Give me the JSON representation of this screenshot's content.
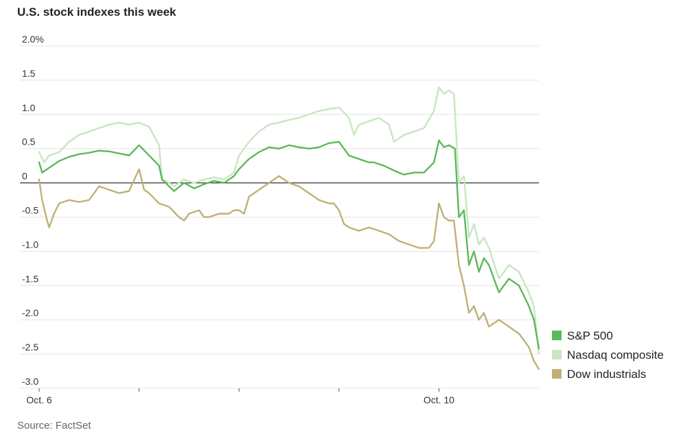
{
  "title": "U.S. stock indexes this week",
  "source": "Source: FactSet",
  "chart_data": {
    "type": "line",
    "title": "U.S. stock indexes this week",
    "ylim": [
      -3.0,
      2.0
    ],
    "y_ticks": [
      {
        "value": 2.0,
        "label": "2.0%"
      },
      {
        "value": 1.5,
        "label": "1.5"
      },
      {
        "value": 1.0,
        "label": "1.0"
      },
      {
        "value": 0.5,
        "label": "0.5"
      },
      {
        "value": 0,
        "label": "0"
      },
      {
        "value": -0.5,
        "label": "-0.5"
      },
      {
        "value": -1.0,
        "label": "-1.0"
      },
      {
        "value": -1.5,
        "label": "-1.5"
      },
      {
        "value": -2.0,
        "label": "-2.0"
      },
      {
        "value": -2.5,
        "label": "-2.5"
      },
      {
        "value": -3.0,
        "label": "-3.0"
      }
    ],
    "x_ticks": [
      {
        "day": 0,
        "label": "Oct. 6"
      },
      {
        "day": 1,
        "label": ""
      },
      {
        "day": 2,
        "label": ""
      },
      {
        "day": 3,
        "label": ""
      },
      {
        "day": 4,
        "label": "Oct. 10"
      }
    ],
    "xlim": [
      0,
      5
    ],
    "grid": true,
    "legend": "bottom-right",
    "series": [
      {
        "name": "S&P 500",
        "color": "#5cb85c",
        "points": [
          [
            0,
            0.3
          ],
          [
            0.03,
            0.15
          ],
          [
            0.1,
            0.22
          ],
          [
            0.2,
            0.32
          ],
          [
            0.3,
            0.38
          ],
          [
            0.4,
            0.42
          ],
          [
            0.5,
            0.44
          ],
          [
            0.6,
            0.47
          ],
          [
            0.7,
            0.46
          ],
          [
            0.8,
            0.43
          ],
          [
            0.9,
            0.4
          ],
          [
            1.0,
            0.55
          ],
          [
            1.1,
            0.4
          ],
          [
            1.2,
            0.25
          ],
          [
            1.23,
            0.05
          ],
          [
            1.3,
            -0.05
          ],
          [
            1.35,
            -0.12
          ],
          [
            1.45,
            0.0
          ],
          [
            1.55,
            -0.08
          ],
          [
            1.65,
            -0.02
          ],
          [
            1.75,
            0.03
          ],
          [
            1.85,
            0.0
          ],
          [
            1.95,
            0.1
          ],
          [
            2.0,
            0.2
          ],
          [
            2.1,
            0.35
          ],
          [
            2.2,
            0.45
          ],
          [
            2.3,
            0.52
          ],
          [
            2.4,
            0.5
          ],
          [
            2.5,
            0.55
          ],
          [
            2.6,
            0.52
          ],
          [
            2.7,
            0.5
          ],
          [
            2.8,
            0.52
          ],
          [
            2.9,
            0.58
          ],
          [
            3.0,
            0.6
          ],
          [
            3.1,
            0.4
          ],
          [
            3.2,
            0.35
          ],
          [
            3.3,
            0.3
          ],
          [
            3.35,
            0.3
          ],
          [
            3.45,
            0.25
          ],
          [
            3.55,
            0.18
          ],
          [
            3.65,
            0.12
          ],
          [
            3.75,
            0.15
          ],
          [
            3.85,
            0.15
          ],
          [
            3.95,
            0.3
          ],
          [
            4.0,
            0.62
          ],
          [
            4.05,
            0.52
          ],
          [
            4.1,
            0.55
          ],
          [
            4.16,
            0.5
          ],
          [
            4.2,
            -0.5
          ],
          [
            4.25,
            -0.4
          ],
          [
            4.3,
            -1.2
          ],
          [
            4.35,
            -1.0
          ],
          [
            4.4,
            -1.3
          ],
          [
            4.45,
            -1.1
          ],
          [
            4.5,
            -1.2
          ],
          [
            4.6,
            -1.6
          ],
          [
            4.7,
            -1.4
          ],
          [
            4.8,
            -1.5
          ],
          [
            4.9,
            -1.8
          ],
          [
            4.95,
            -2.0
          ],
          [
            5.0,
            -2.42
          ]
        ]
      },
      {
        "name": "Nasdaq composite",
        "color": "#c8e6c0",
        "points": [
          [
            0,
            0.45
          ],
          [
            0.05,
            0.3
          ],
          [
            0.1,
            0.4
          ],
          [
            0.2,
            0.45
          ],
          [
            0.3,
            0.6
          ],
          [
            0.4,
            0.7
          ],
          [
            0.5,
            0.75
          ],
          [
            0.6,
            0.8
          ],
          [
            0.7,
            0.85
          ],
          [
            0.8,
            0.88
          ],
          [
            0.9,
            0.85
          ],
          [
            1.0,
            0.88
          ],
          [
            1.1,
            0.82
          ],
          [
            1.2,
            0.55
          ],
          [
            1.23,
            0.05
          ],
          [
            1.3,
            0.0
          ],
          [
            1.35,
            -0.05
          ],
          [
            1.45,
            0.05
          ],
          [
            1.55,
            0.0
          ],
          [
            1.65,
            0.05
          ],
          [
            1.75,
            0.08
          ],
          [
            1.85,
            0.05
          ],
          [
            1.95,
            0.15
          ],
          [
            2.0,
            0.4
          ],
          [
            2.1,
            0.6
          ],
          [
            2.2,
            0.75
          ],
          [
            2.3,
            0.85
          ],
          [
            2.4,
            0.88
          ],
          [
            2.5,
            0.92
          ],
          [
            2.6,
            0.95
          ],
          [
            2.7,
            1.0
          ],
          [
            2.8,
            1.05
          ],
          [
            2.9,
            1.08
          ],
          [
            3.0,
            1.1
          ],
          [
            3.1,
            0.95
          ],
          [
            3.15,
            0.7
          ],
          [
            3.2,
            0.85
          ],
          [
            3.3,
            0.9
          ],
          [
            3.4,
            0.95
          ],
          [
            3.5,
            0.85
          ],
          [
            3.55,
            0.6
          ],
          [
            3.65,
            0.7
          ],
          [
            3.75,
            0.75
          ],
          [
            3.85,
            0.8
          ],
          [
            3.95,
            1.05
          ],
          [
            4.0,
            1.4
          ],
          [
            4.05,
            1.3
          ],
          [
            4.1,
            1.35
          ],
          [
            4.15,
            1.3
          ],
          [
            4.2,
            0.0
          ],
          [
            4.25,
            0.1
          ],
          [
            4.3,
            -0.8
          ],
          [
            4.35,
            -0.6
          ],
          [
            4.4,
            -0.9
          ],
          [
            4.45,
            -0.8
          ],
          [
            4.5,
            -0.95
          ],
          [
            4.6,
            -1.4
          ],
          [
            4.7,
            -1.2
          ],
          [
            4.8,
            -1.3
          ],
          [
            4.9,
            -1.6
          ],
          [
            4.95,
            -1.8
          ],
          [
            5.0,
            -2.5
          ]
        ]
      },
      {
        "name": "Dow industrials",
        "color": "#bfb176",
        "points": [
          [
            0,
            0.05
          ],
          [
            0.03,
            -0.25
          ],
          [
            0.08,
            -0.55
          ],
          [
            0.1,
            -0.65
          ],
          [
            0.15,
            -0.45
          ],
          [
            0.2,
            -0.3
          ],
          [
            0.3,
            -0.25
          ],
          [
            0.4,
            -0.28
          ],
          [
            0.5,
            -0.25
          ],
          [
            0.6,
            -0.05
          ],
          [
            0.7,
            -0.1
          ],
          [
            0.8,
            -0.15
          ],
          [
            0.9,
            -0.12
          ],
          [
            1.0,
            0.2
          ],
          [
            1.05,
            -0.1
          ],
          [
            1.1,
            -0.15
          ],
          [
            1.2,
            -0.3
          ],
          [
            1.3,
            -0.35
          ],
          [
            1.4,
            -0.5
          ],
          [
            1.45,
            -0.55
          ],
          [
            1.5,
            -0.45
          ],
          [
            1.6,
            -0.4
          ],
          [
            1.65,
            -0.5
          ],
          [
            1.7,
            -0.5
          ],
          [
            1.8,
            -0.45
          ],
          [
            1.9,
            -0.45
          ],
          [
            1.95,
            -0.4
          ],
          [
            2.0,
            -0.4
          ],
          [
            2.05,
            -0.45
          ],
          [
            2.1,
            -0.2
          ],
          [
            2.2,
            -0.1
          ],
          [
            2.3,
            0.0
          ],
          [
            2.4,
            0.1
          ],
          [
            2.5,
            0.0
          ],
          [
            2.6,
            -0.05
          ],
          [
            2.7,
            -0.15
          ],
          [
            2.8,
            -0.25
          ],
          [
            2.9,
            -0.3
          ],
          [
            2.95,
            -0.3
          ],
          [
            3.0,
            -0.4
          ],
          [
            3.05,
            -0.6
          ],
          [
            3.1,
            -0.65
          ],
          [
            3.2,
            -0.7
          ],
          [
            3.3,
            -0.65
          ],
          [
            3.4,
            -0.7
          ],
          [
            3.5,
            -0.75
          ],
          [
            3.6,
            -0.85
          ],
          [
            3.7,
            -0.9
          ],
          [
            3.8,
            -0.95
          ],
          [
            3.9,
            -0.95
          ],
          [
            3.95,
            -0.85
          ],
          [
            4.0,
            -0.3
          ],
          [
            4.05,
            -0.5
          ],
          [
            4.1,
            -0.55
          ],
          [
            4.15,
            -0.55
          ],
          [
            4.2,
            -1.2
          ],
          [
            4.25,
            -1.5
          ],
          [
            4.3,
            -1.9
          ],
          [
            4.35,
            -1.8
          ],
          [
            4.4,
            -2.0
          ],
          [
            4.45,
            -1.9
          ],
          [
            4.5,
            -2.1
          ],
          [
            4.6,
            -2.0
          ],
          [
            4.7,
            -2.1
          ],
          [
            4.8,
            -2.2
          ],
          [
            4.9,
            -2.4
          ],
          [
            4.95,
            -2.6
          ],
          [
            5.0,
            -2.72
          ]
        ]
      }
    ]
  }
}
